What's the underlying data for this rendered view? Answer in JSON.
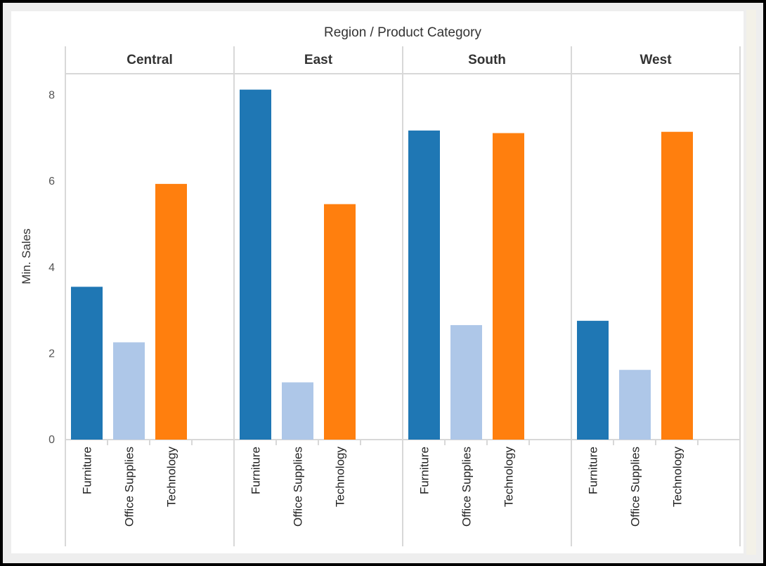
{
  "chart_data": {
    "type": "bar",
    "title": "Region  /  Product Category",
    "ylabel": "Min. Sales",
    "ylim": [
      0,
      8.5
    ],
    "yticks": [
      0,
      2,
      4,
      6,
      8
    ],
    "grid": false,
    "categories": [
      "Furniture",
      "Office Supplies",
      "Technology"
    ],
    "colors": {
      "Furniture": "#1f77b4",
      "Office Supplies": "#aec7e8",
      "Technology": "#ff7f0e"
    },
    "panels": [
      {
        "region": "Central",
        "values": [
          3.55,
          2.26,
          5.94
        ]
      },
      {
        "region": "East",
        "values": [
          8.13,
          1.33,
          5.47
        ]
      },
      {
        "region": "South",
        "values": [
          7.18,
          2.66,
          7.12
        ]
      },
      {
        "region": "West",
        "values": [
          2.76,
          1.62,
          7.15
        ]
      }
    ]
  }
}
